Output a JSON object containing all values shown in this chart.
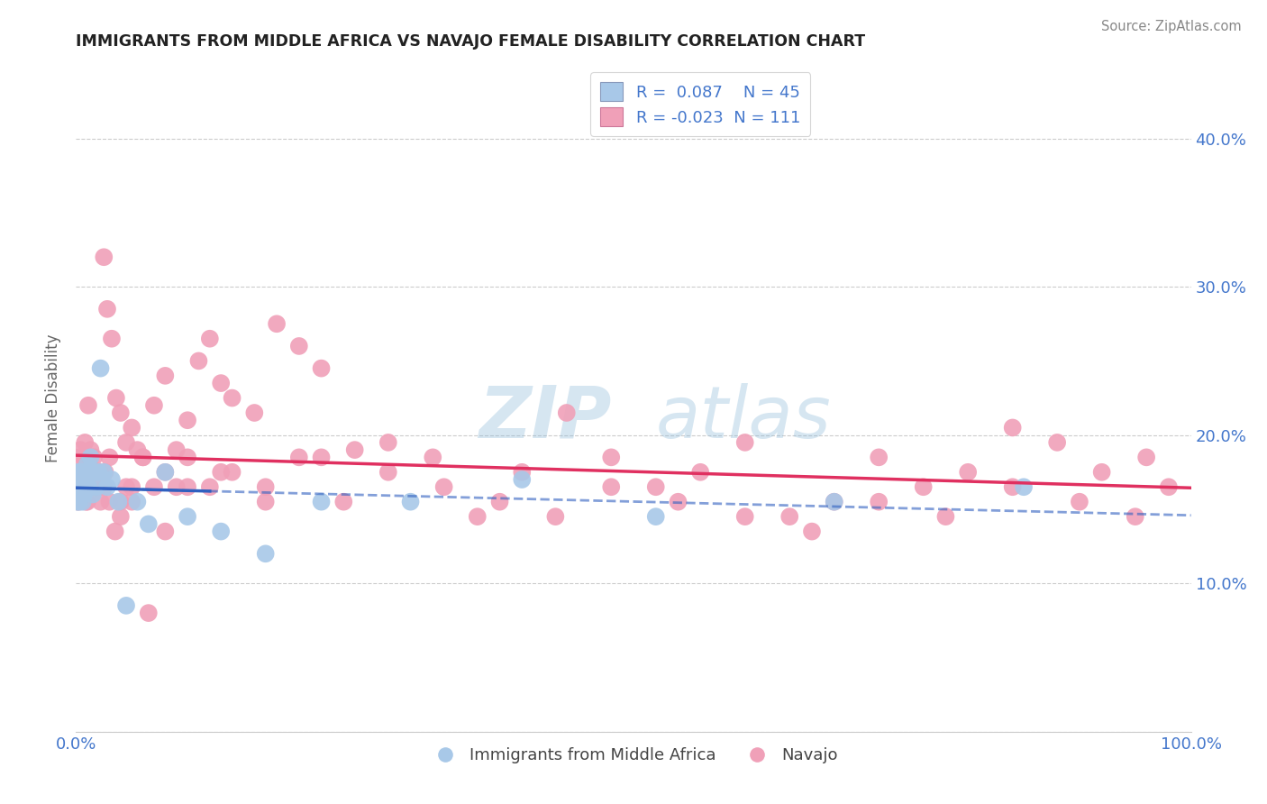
{
  "title": "IMMIGRANTS FROM MIDDLE AFRICA VS NAVAJO FEMALE DISABILITY CORRELATION CHART",
  "source": "Source: ZipAtlas.com",
  "ylabel": "Female Disability",
  "watermark_zip": "ZIP",
  "watermark_atlas": "atlas",
  "blue_R": 0.087,
  "blue_N": 45,
  "pink_R": -0.023,
  "pink_N": 111,
  "blue_color": "#a8c8e8",
  "blue_line_color": "#3060c0",
  "pink_color": "#f0a0b8",
  "pink_line_color": "#e03060",
  "blue_legend_color": "#a8c8e8",
  "pink_legend_color": "#f0a0b8",
  "background_color": "#ffffff",
  "grid_color": "#cccccc",
  "title_color": "#222222",
  "axis_label_color": "#4477cc",
  "xlim": [
    0.0,
    1.0
  ],
  "ylim": [
    0.0,
    0.45
  ],
  "yticks": [
    0.0,
    0.1,
    0.2,
    0.3,
    0.4
  ],
  "ytick_labels": [
    "",
    "10.0%",
    "20.0%",
    "30.0%",
    "40.0%"
  ],
  "blue_scatter_x": [
    0.0005,
    0.001,
    0.001,
    0.0015,
    0.002,
    0.002,
    0.0025,
    0.003,
    0.003,
    0.004,
    0.004,
    0.005,
    0.005,
    0.006,
    0.006,
    0.007,
    0.007,
    0.008,
    0.009,
    0.01,
    0.011,
    0.012,
    0.013,
    0.015,
    0.016,
    0.018,
    0.02,
    0.022,
    0.025,
    0.028,
    0.032,
    0.038,
    0.045,
    0.055,
    0.065,
    0.08,
    0.1,
    0.13,
    0.17,
    0.22,
    0.3,
    0.4,
    0.52,
    0.68,
    0.85
  ],
  "blue_scatter_y": [
    0.165,
    0.17,
    0.155,
    0.16,
    0.175,
    0.165,
    0.16,
    0.17,
    0.155,
    0.165,
    0.175,
    0.16,
    0.17,
    0.155,
    0.165,
    0.175,
    0.16,
    0.165,
    0.17,
    0.18,
    0.165,
    0.175,
    0.185,
    0.16,
    0.175,
    0.165,
    0.175,
    0.245,
    0.175,
    0.165,
    0.17,
    0.155,
    0.085,
    0.155,
    0.14,
    0.175,
    0.145,
    0.135,
    0.12,
    0.155,
    0.155,
    0.17,
    0.145,
    0.155,
    0.165
  ],
  "pink_scatter_x": [
    0.001,
    0.002,
    0.003,
    0.004,
    0.005,
    0.006,
    0.007,
    0.008,
    0.009,
    0.01,
    0.011,
    0.012,
    0.013,
    0.014,
    0.015,
    0.016,
    0.018,
    0.02,
    0.022,
    0.025,
    0.028,
    0.032,
    0.036,
    0.04,
    0.045,
    0.05,
    0.055,
    0.06,
    0.07,
    0.08,
    0.09,
    0.1,
    0.11,
    0.12,
    0.13,
    0.14,
    0.16,
    0.18,
    0.2,
    0.22,
    0.25,
    0.28,
    0.32,
    0.36,
    0.4,
    0.44,
    0.48,
    0.52,
    0.56,
    0.6,
    0.64,
    0.68,
    0.72,
    0.76,
    0.8,
    0.84,
    0.88,
    0.92,
    0.96,
    0.98,
    0.003,
    0.005,
    0.007,
    0.009,
    0.012,
    0.015,
    0.018,
    0.022,
    0.026,
    0.03,
    0.035,
    0.04,
    0.045,
    0.05,
    0.06,
    0.07,
    0.08,
    0.09,
    0.1,
    0.12,
    0.14,
    0.17,
    0.2,
    0.24,
    0.28,
    0.33,
    0.38,
    0.43,
    0.48,
    0.54,
    0.6,
    0.66,
    0.72,
    0.78,
    0.84,
    0.9,
    0.95,
    0.005,
    0.01,
    0.015,
    0.02,
    0.025,
    0.03,
    0.04,
    0.05,
    0.065,
    0.08,
    0.1,
    0.13,
    0.17,
    0.22
  ],
  "pink_scatter_y": [
    0.165,
    0.155,
    0.175,
    0.19,
    0.165,
    0.175,
    0.185,
    0.195,
    0.175,
    0.185,
    0.22,
    0.18,
    0.19,
    0.165,
    0.175,
    0.185,
    0.175,
    0.165,
    0.175,
    0.32,
    0.285,
    0.265,
    0.225,
    0.215,
    0.195,
    0.205,
    0.19,
    0.185,
    0.22,
    0.24,
    0.19,
    0.21,
    0.25,
    0.265,
    0.235,
    0.225,
    0.215,
    0.275,
    0.26,
    0.245,
    0.19,
    0.195,
    0.185,
    0.145,
    0.175,
    0.215,
    0.185,
    0.165,
    0.175,
    0.195,
    0.145,
    0.155,
    0.185,
    0.165,
    0.175,
    0.205,
    0.195,
    0.175,
    0.185,
    0.165,
    0.185,
    0.165,
    0.175,
    0.155,
    0.185,
    0.175,
    0.165,
    0.155,
    0.175,
    0.185,
    0.135,
    0.155,
    0.165,
    0.155,
    0.185,
    0.165,
    0.175,
    0.165,
    0.185,
    0.165,
    0.175,
    0.165,
    0.185,
    0.155,
    0.175,
    0.165,
    0.155,
    0.145,
    0.165,
    0.155,
    0.145,
    0.135,
    0.155,
    0.145,
    0.165,
    0.155,
    0.145,
    0.175,
    0.155,
    0.165,
    0.175,
    0.165,
    0.155,
    0.145,
    0.165,
    0.08,
    0.135,
    0.165,
    0.175,
    0.155,
    0.185
  ]
}
